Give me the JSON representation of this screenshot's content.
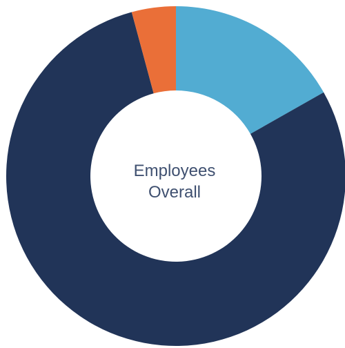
{
  "chart_data": {
    "type": "donut",
    "center_label_lines": [
      "Employees",
      "Overall"
    ],
    "slices": [
      {
        "value": 16.8,
        "color": "#52acd2"
      },
      {
        "value": 79.0,
        "color": "#213458"
      },
      {
        "value": 4.2,
        "color": "#ea6f38"
      }
    ],
    "start_angle_deg": 0,
    "direction": "clockwise"
  }
}
